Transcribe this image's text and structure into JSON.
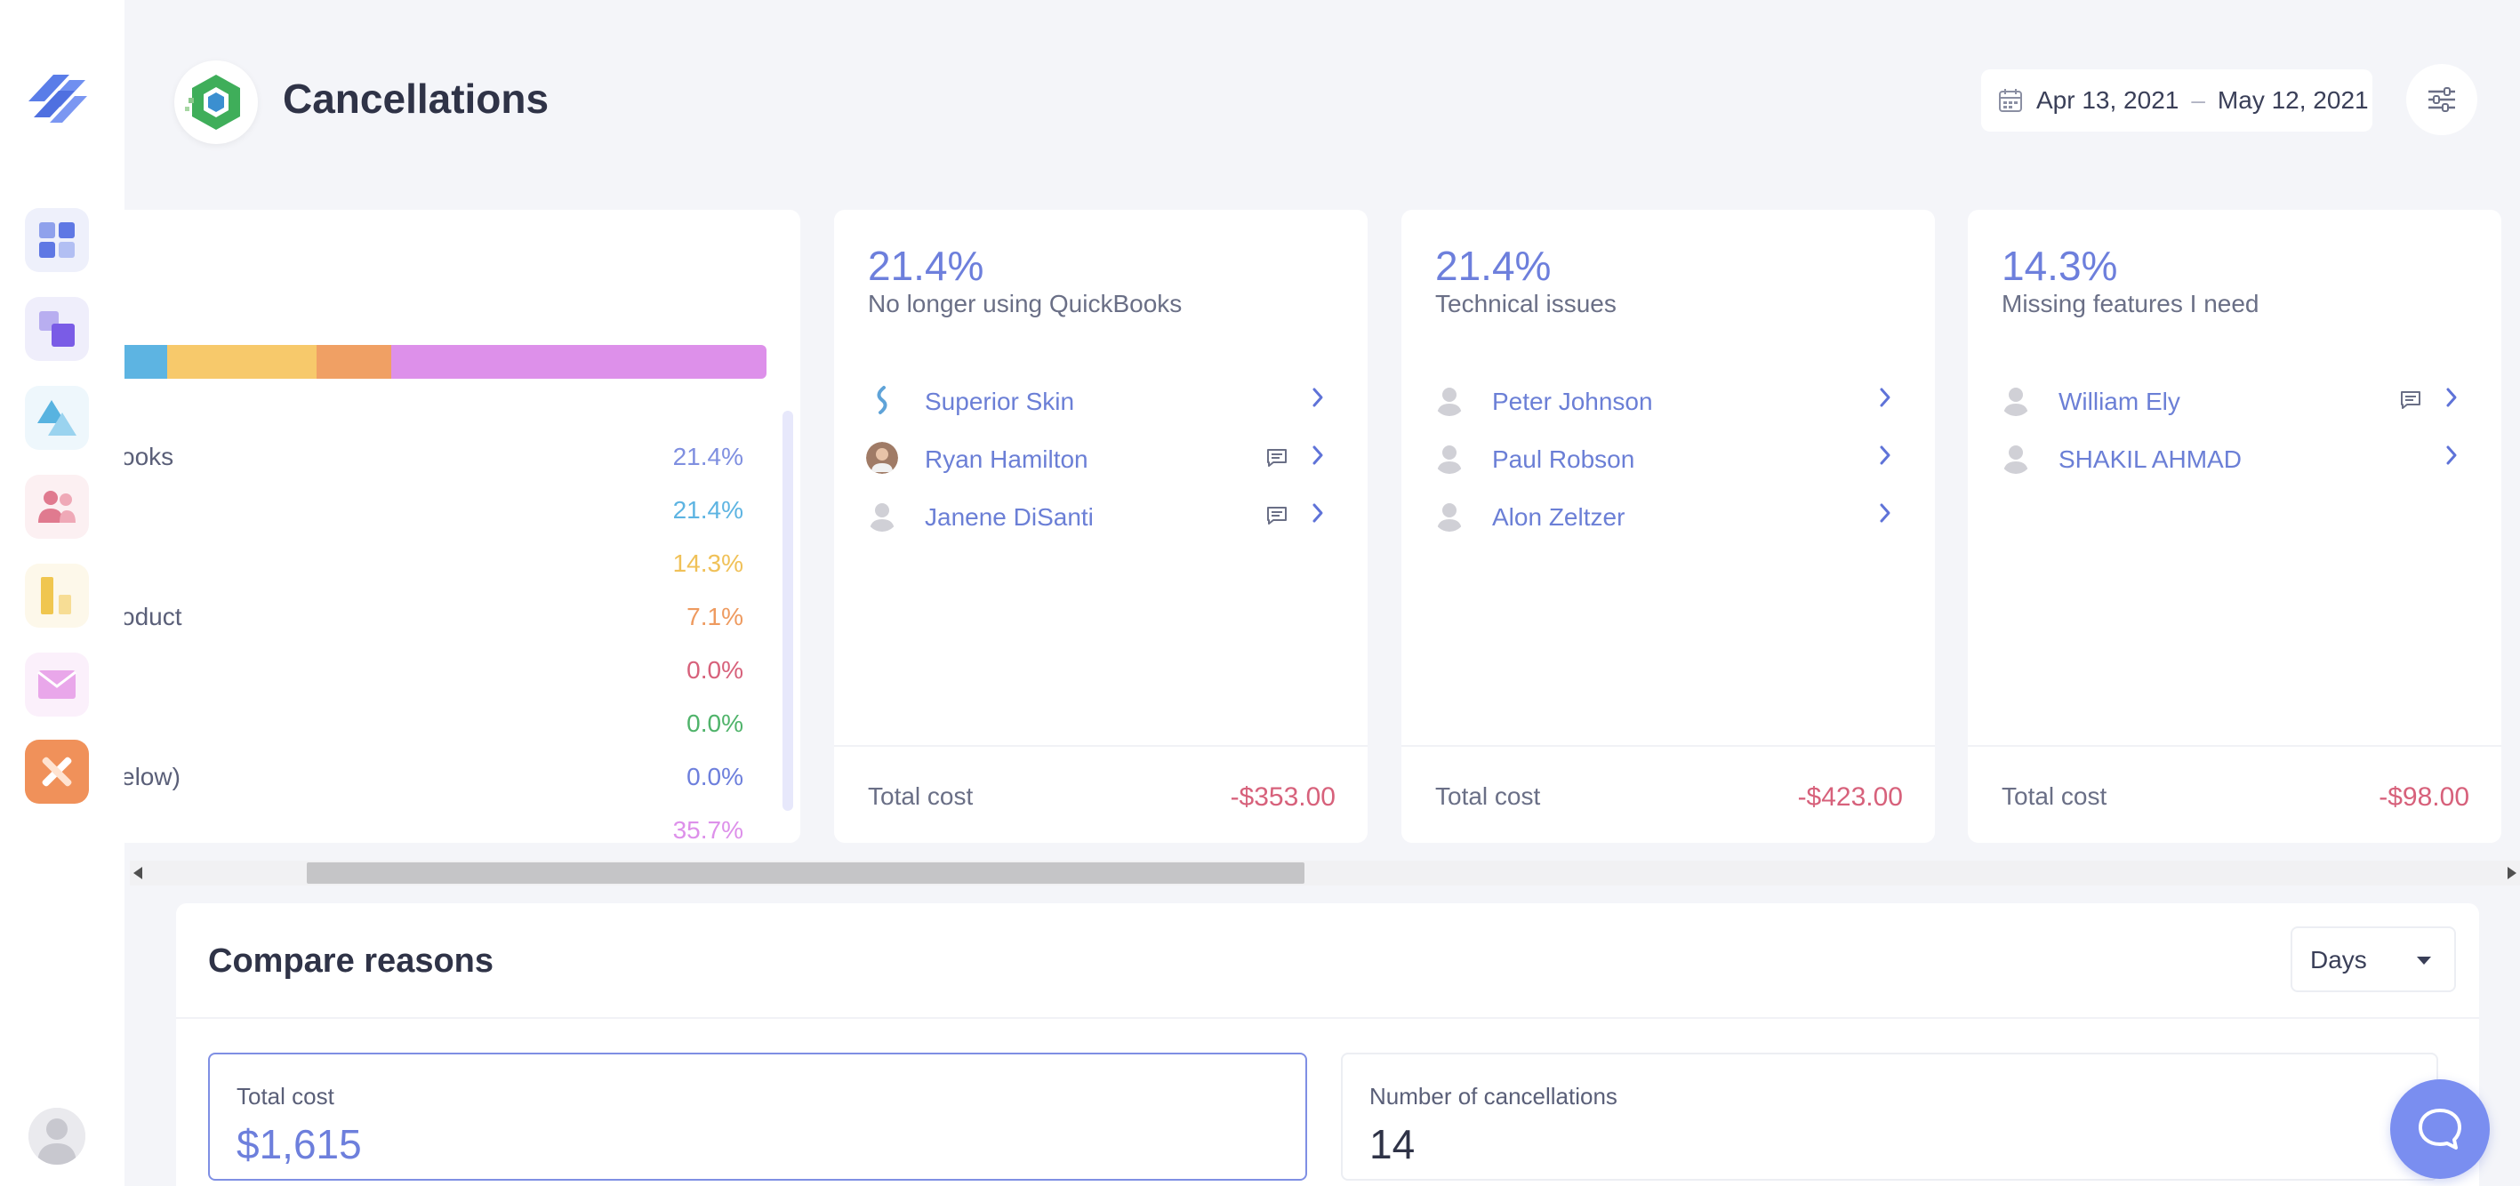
{
  "page": {
    "title": "Cancellations"
  },
  "date_range": {
    "start": "Apr 13, 2021",
    "separator": "–",
    "end": "May 12, 2021"
  },
  "sidebar": {
    "items": [
      {
        "name": "dashboard-icon",
        "color": "#6f86ea"
      },
      {
        "name": "layers-icon",
        "color": "#7a5ce6"
      },
      {
        "name": "triangles-icon",
        "color": "#58b3e0"
      },
      {
        "name": "users-icon",
        "color": "#e07a8f"
      },
      {
        "name": "bar-chart-icon",
        "color": "#f0c64f"
      },
      {
        "name": "mail-icon",
        "color": "#de8be0"
      },
      {
        "name": "tools-icon",
        "color": "#f0915a"
      }
    ]
  },
  "summary": {
    "bar_segments": [
      {
        "value": 21.4,
        "color": "#7f8fe0"
      },
      {
        "value": 21.4,
        "color": "#5db4e2"
      },
      {
        "value": 14.3,
        "color": "#f7c96b"
      },
      {
        "value": 7.1,
        "color": "#f0a064"
      },
      {
        "value": 35.7,
        "color": "#dd90ea"
      }
    ],
    "rows": [
      {
        "label": "ooks",
        "pct": "21.4%",
        "color": "#7f8fe0"
      },
      {
        "label": "",
        "pct": "21.4%",
        "color": "#5db4e2"
      },
      {
        "label": "",
        "pct": "14.3%",
        "color": "#f0c158"
      },
      {
        "label": "oduct",
        "pct": "7.1%",
        "color": "#ee9a5f"
      },
      {
        "label": "",
        "pct": "0.0%",
        "color": "#d7617b"
      },
      {
        "label": "",
        "pct": "0.0%",
        "color": "#4fb36a"
      },
      {
        "label": "elow)",
        "pct": "0.0%",
        "color": "#6d7fdc"
      },
      {
        "label": "",
        "pct": "35.7%",
        "color": "#dd90ea"
      }
    ]
  },
  "reason_cards": [
    {
      "pct": "21.4%",
      "reason": "No longer using QuickBooks",
      "customers": [
        {
          "name": "Superior Skin",
          "avatar": "logo",
          "has_message": false
        },
        {
          "name": "Ryan Hamilton",
          "avatar": "photo",
          "has_message": true
        },
        {
          "name": "Janene DiSanti",
          "avatar": "default",
          "has_message": true
        }
      ],
      "total_label": "Total cost",
      "total": "-$353.00"
    },
    {
      "pct": "21.4%",
      "reason": "Technical issues",
      "customers": [
        {
          "name": "Peter Johnson",
          "avatar": "default",
          "has_message": false
        },
        {
          "name": "Paul Robson",
          "avatar": "default",
          "has_message": false
        },
        {
          "name": "Alon Zeltzer",
          "avatar": "default",
          "has_message": false
        }
      ],
      "total_label": "Total cost",
      "total": "-$423.00"
    },
    {
      "pct": "14.3%",
      "reason": "Missing features I need",
      "customers": [
        {
          "name": "William Ely",
          "avatar": "default",
          "has_message": true
        },
        {
          "name": "SHAKIL AHMAD",
          "avatar": "default",
          "has_message": false
        }
      ],
      "total_label": "Total cost",
      "total": "-$98.00"
    }
  ],
  "compare": {
    "title": "Compare reasons",
    "period_select": "Days",
    "metrics": [
      {
        "label": "Total cost",
        "value": "$1,615",
        "color": "#6d7fdc"
      },
      {
        "label": "Number of cancellations",
        "value": "14",
        "color": "#2f3347"
      }
    ]
  }
}
